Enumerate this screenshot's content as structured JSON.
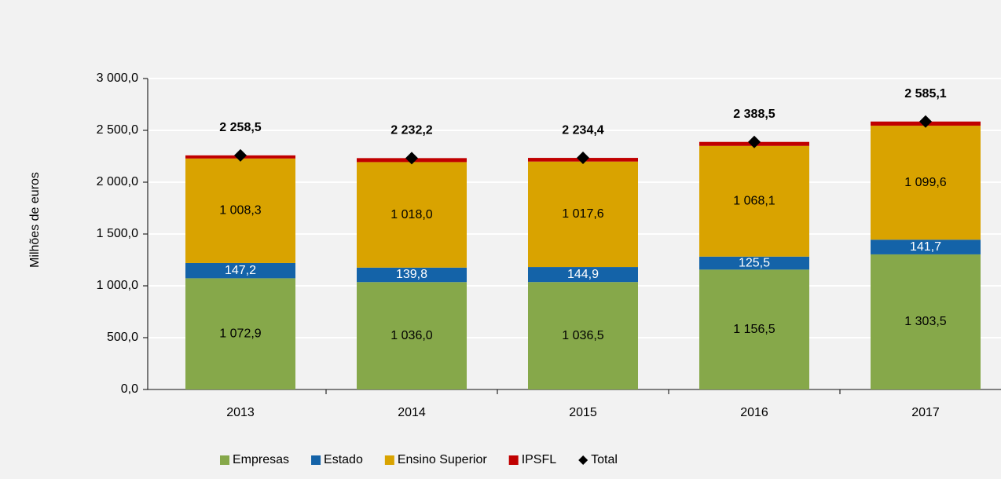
{
  "chart_data": {
    "type": "bar",
    "stacked": true,
    "y_axis_label": "Milhões de euros",
    "categories": [
      "2013",
      "2014",
      "2015",
      "2016",
      "2017"
    ],
    "series": [
      {
        "name": "Empresas",
        "color": "#86a84a",
        "values": [
          1072.9,
          1036.0,
          1036.5,
          1156.5,
          1303.5
        ],
        "value_labels": [
          "1 072,9",
          "1 036,0",
          "1 036,5",
          "1 156,5",
          "1 303,5"
        ],
        "label_color": "#000000"
      },
      {
        "name": "Estado",
        "color": "#1463a8",
        "values": [
          147.2,
          139.8,
          144.9,
          125.5,
          141.7
        ],
        "value_labels": [
          "147,2",
          "139,8",
          "144,9",
          "125,5",
          "141,7"
        ],
        "label_color": "#ffffff"
      },
      {
        "name": "Ensino Superior",
        "color": "#d9a300",
        "values": [
          1008.3,
          1018.0,
          1017.6,
          1068.1,
          1099.6
        ],
        "value_labels": [
          "1 008,3",
          "1 018,0",
          "1 017,6",
          "1 068,1",
          "1 099,6"
        ],
        "label_color": "#000000"
      },
      {
        "name": "IPSFL",
        "color": "#c00000",
        "values": [
          30.1,
          38.4,
          35.4,
          38.4,
          40.3
        ]
      },
      {
        "name": "Total",
        "color": "#000000",
        "marker": "diamond",
        "values": [
          2258.5,
          2232.2,
          2234.4,
          2388.5,
          2585.1
        ],
        "value_labels": [
          "2 258,5",
          "2 232,2",
          "2 234,4",
          "2 388,5",
          "2 585,1"
        ],
        "label_color": "#000000"
      }
    ],
    "ylim": [
      0,
      3000
    ],
    "yticks": [
      {
        "value": 0,
        "label": "0,0"
      },
      {
        "value": 500,
        "label": "500,0"
      },
      {
        "value": 1000,
        "label": "1 000,0"
      },
      {
        "value": 1500,
        "label": "1 500,0"
      },
      {
        "value": 2000,
        "label": "2 000,0"
      },
      {
        "value": 2500,
        "label": "2 500,0"
      },
      {
        "value": 3000,
        "label": "3 000,0"
      }
    ],
    "grid": true,
    "legend": "bottom"
  }
}
